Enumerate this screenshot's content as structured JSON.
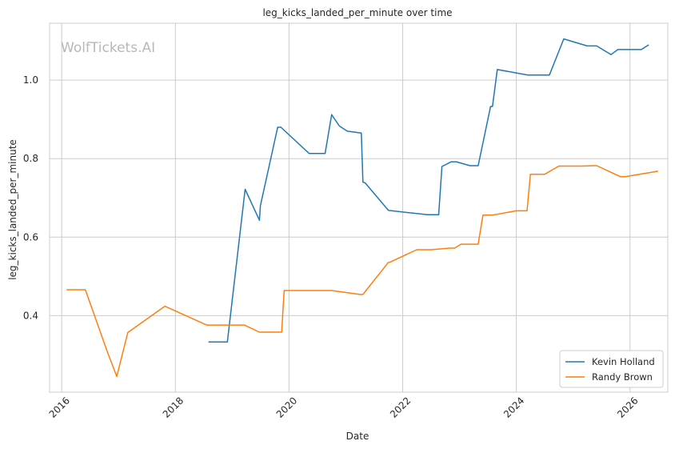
{
  "chart_data": {
    "type": "line",
    "title": "leg_kicks_landed_per_minute over time",
    "xlabel": "Date",
    "ylabel": "leg_kicks_landed_per_minute",
    "watermark": "WolfTickets.AI",
    "x_ticks": [
      "2016",
      "2018",
      "2020",
      "2022",
      "2024",
      "2026"
    ],
    "y_ticks": [
      "0.4",
      "0.6",
      "0.8",
      "1.0"
    ],
    "xlim": [
      "2015-10-15",
      "2026-09-01"
    ],
    "ylim": [
      0.205,
      1.145
    ],
    "grid": true,
    "legend_position": "lower-right",
    "series": [
      {
        "name": "Kevin Holland",
        "color": "#1f77b4",
        "x": [
          "2018-08-01",
          "2018-12-01",
          "2019-03-25",
          "2019-06-25",
          "2019-07-01",
          "2019-10-20",
          "2019-11-10",
          "2020-05-10",
          "2020-08-20",
          "2020-10-01",
          "2020-11-20",
          "2021-01-10",
          "2021-04-10",
          "2021-04-20",
          "2021-05-05",
          "2021-10-01",
          "2022-06-10",
          "2022-08-20",
          "2022-09-10",
          "2022-11-10",
          "2022-12-10",
          "2023-03-10",
          "2023-05-01",
          "2023-07-20",
          "2023-08-01",
          "2023-09-01",
          "2024-03-15",
          "2024-04-01",
          "2024-08-01",
          "2024-11-01",
          "2025-04-01",
          "2025-06-01",
          "2025-09-01",
          "2025-10-15",
          "2026-03-15",
          "2026-05-01"
        ],
        "values": [
          0.333,
          0.333,
          0.722,
          0.643,
          0.68,
          0.88,
          0.88,
          0.813,
          0.813,
          0.912,
          0.883,
          0.87,
          0.865,
          0.74,
          0.738,
          0.668,
          0.657,
          0.657,
          0.78,
          0.792,
          0.792,
          0.782,
          0.782,
          0.933,
          0.933,
          1.027,
          1.013,
          1.013,
          1.013,
          1.105,
          1.087,
          1.087,
          1.065,
          1.078,
          1.078,
          1.09
        ],
        "_unused": null
      },
      {
        "name": "Randy Brown",
        "color": "#ff7f0e",
        "x": [
          "2016-02-01",
          "2016-06-01",
          "2016-10-20",
          "2016-12-20",
          "2017-03-01",
          "2017-10-25",
          "2018-07-20",
          "2019-03-20",
          "2019-06-25",
          "2019-11-15",
          "2019-12-01",
          "2020-10-01",
          "2021-04-01",
          "2021-04-20",
          "2021-10-01",
          "2021-10-10",
          "2022-04-01",
          "2022-07-01",
          "2022-11-01",
          "2022-12-01",
          "2023-01-10",
          "2023-05-01",
          "2023-06-01",
          "2023-08-01",
          "2024-01-01",
          "2024-03-10",
          "2024-04-01",
          "2024-07-01",
          "2024-10-01",
          "2025-03-01",
          "2025-05-15",
          "2025-06-01",
          "2025-11-01",
          "2025-12-01",
          "2026-07-01"
        ],
        "values": [
          0.466,
          0.466,
          0.308,
          0.245,
          0.357,
          0.424,
          0.376,
          0.376,
          0.358,
          0.358,
          0.464,
          0.464,
          0.454,
          0.454,
          0.536,
          0.536,
          0.568,
          0.568,
          0.572,
          0.572,
          0.582,
          0.582,
          0.656,
          0.656,
          0.667,
          0.667,
          0.76,
          0.76,
          0.781,
          0.781,
          0.782,
          0.782,
          0.754,
          0.754,
          0.768
        ]
      }
    ]
  }
}
